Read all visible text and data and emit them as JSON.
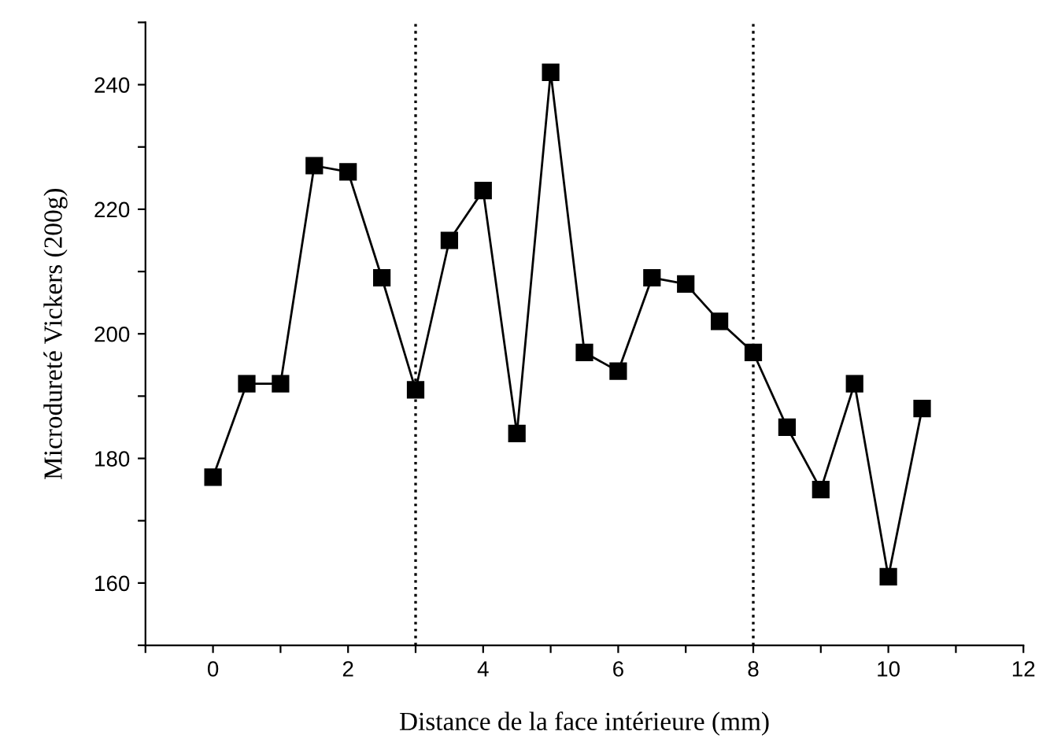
{
  "chart_data": {
    "type": "line",
    "xlabel": "Distance de la face intérieure (mm)",
    "ylabel": "Microdureté Vickers (200g)",
    "x": [
      0,
      0.5,
      1,
      1.5,
      2,
      2.5,
      3,
      3.5,
      4,
      4.5,
      5,
      5.5,
      6,
      6.5,
      7,
      7.5,
      8,
      8.5,
      9,
      9.5,
      10,
      10.5
    ],
    "series": [
      {
        "color": "#000000",
        "values": [
          177,
          192,
          192,
          227,
          226,
          209,
          191,
          215,
          223,
          184,
          242,
          197,
          194,
          209,
          208,
          202,
          197,
          185,
          175,
          192,
          161,
          188
        ]
      }
    ],
    "marker": "square",
    "line_style": "solid",
    "grid": false,
    "legend": false,
    "xlim": [
      -1,
      12
    ],
    "xticks": [
      {
        "value": -1,
        "label": null
      },
      0,
      {
        "value": 1,
        "label": null
      },
      2,
      {
        "value": 3,
        "label": null
      },
      4,
      {
        "value": 5,
        "label": null
      },
      6,
      {
        "value": 7,
        "label": null
      },
      8,
      {
        "value": 9,
        "label": null
      },
      10,
      {
        "value": 11,
        "label": null
      },
      12
    ],
    "ylim": [
      150,
      250
    ],
    "yticks": [
      {
        "value": 150,
        "label": null
      },
      160,
      {
        "value": 170,
        "label": null
      },
      180,
      {
        "value": 190,
        "label": null
      },
      200,
      {
        "value": 210,
        "label": null
      },
      220,
      {
        "value": 230,
        "label": null
      },
      240,
      {
        "value": 250,
        "label": null
      }
    ],
    "ref_lines": [
      {
        "axis": "x",
        "value": 3,
        "color": "#000000",
        "line_style": "dotted"
      },
      {
        "axis": "x",
        "value": 8,
        "color": "#000000",
        "line_style": "dotted"
      }
    ]
  }
}
